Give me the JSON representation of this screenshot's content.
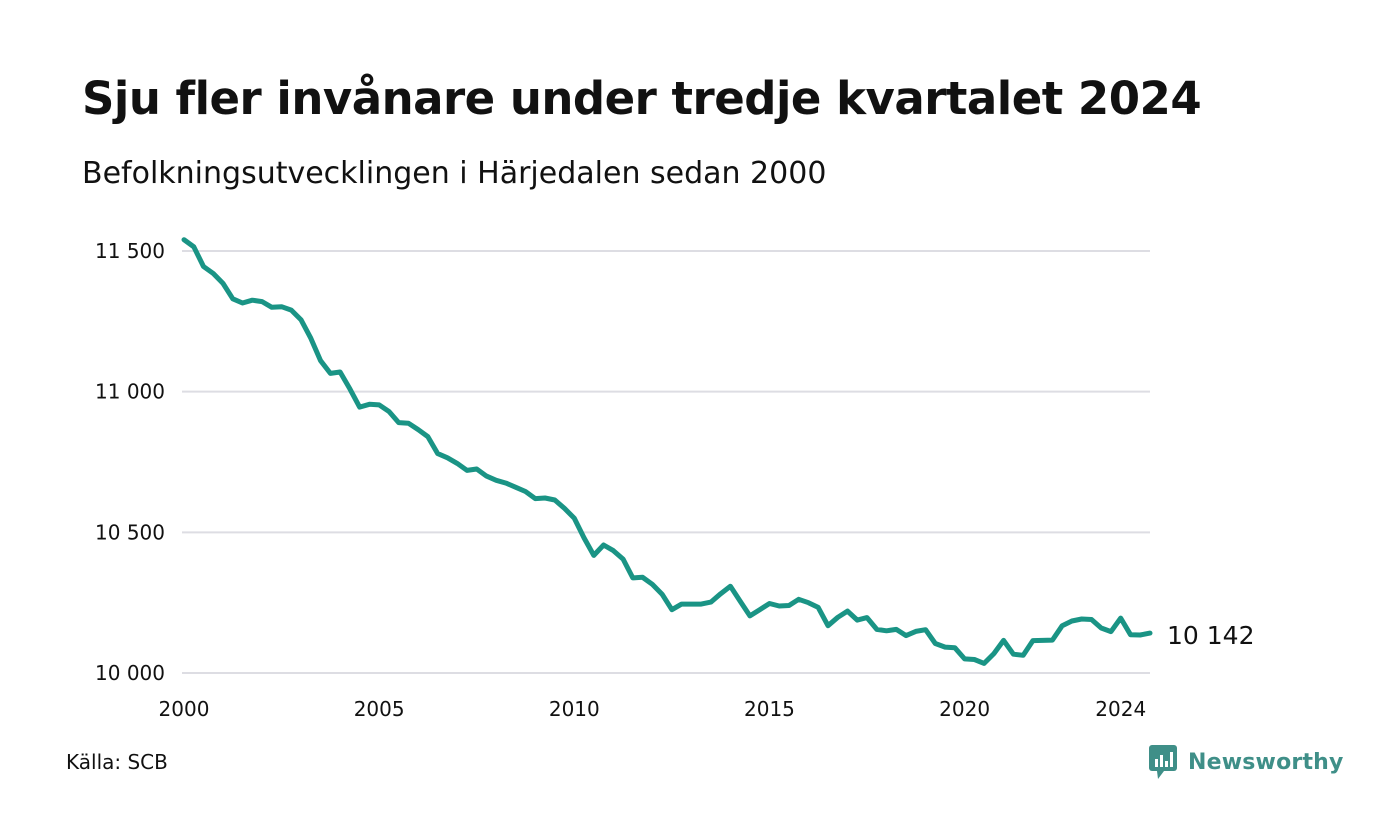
{
  "title": "Sju fler invånare under tredje kvartalet 2024",
  "subtitle": "Befolkningsutvecklingen i Härjedalen sedan 2000",
  "source": "Källa: SCB",
  "brand": "Newsworthy",
  "colors": {
    "line": "#1a9485",
    "grid": "#dddde3",
    "brand": "#3f8f88"
  },
  "chart_data": {
    "type": "line",
    "title": "Sju fler invånare under tredje kvartalet 2024",
    "subtitle": "Befolkningsutvecklingen i Härjedalen sedan 2000",
    "xlabel": "",
    "ylabel": "",
    "xlim": [
      2000,
      2024.75
    ],
    "ylim": [
      10000,
      11500
    ],
    "grid": true,
    "legend": "none",
    "x_ticks": [
      {
        "value": 2000,
        "label": "2000"
      },
      {
        "value": 2005,
        "label": "2005"
      },
      {
        "value": 2010,
        "label": "2010"
      },
      {
        "value": 2015,
        "label": "2015"
      },
      {
        "value": 2020,
        "label": "2020"
      },
      {
        "value": 2024,
        "label": "2024"
      }
    ],
    "y_ticks": [
      {
        "value": 10000,
        "label": "10 000"
      },
      {
        "value": 10500,
        "label": "10 500"
      },
      {
        "value": 11000,
        "label": "11 000"
      },
      {
        "value": 11500,
        "label": "11 500"
      }
    ],
    "end_label": "10 142",
    "series": [
      {
        "x": [
          2000.0,
          2000.25,
          2000.5,
          2000.75,
          2001.0,
          2001.25,
          2001.5,
          2001.75,
          2002.0,
          2002.25,
          2002.5,
          2002.75,
          2003.0,
          2003.25,
          2003.5,
          2003.75,
          2004.0,
          2004.25,
          2004.5,
          2004.75,
          2005.0,
          2005.25,
          2005.5,
          2005.75,
          2006.0,
          2006.25,
          2006.5,
          2006.75,
          2007.0,
          2007.25,
          2007.5,
          2007.75,
          2008.0,
          2008.25,
          2008.5,
          2008.75,
          2009.0,
          2009.25,
          2009.5,
          2009.75,
          2010.0,
          2010.25,
          2010.5,
          2010.75,
          2011.0,
          2011.25,
          2011.5,
          2011.75,
          2012.0,
          2012.25,
          2012.5,
          2012.75,
          2013.0,
          2013.25,
          2013.5,
          2013.75,
          2014.0,
          2014.25,
          2014.5,
          2014.75,
          2015.0,
          2015.25,
          2015.5,
          2015.75,
          2016.0,
          2016.25,
          2016.5,
          2016.75,
          2017.0,
          2017.25,
          2017.5,
          2017.75,
          2018.0,
          2018.25,
          2018.5,
          2018.75,
          2019.0,
          2019.25,
          2019.5,
          2019.75,
          2020.0,
          2020.25,
          2020.5,
          2020.75,
          2021.0,
          2021.25,
          2021.5,
          2021.75,
          2022.0,
          2022.25,
          2022.5,
          2022.75,
          2023.0,
          2023.25,
          2023.5,
          2023.75,
          2024.0,
          2024.25,
          2024.5,
          2024.75
        ],
        "values": [
          11540,
          11515,
          11445,
          11420,
          11385,
          11330,
          11315,
          11325,
          11320,
          11300,
          11302,
          11290,
          11255,
          11190,
          11110,
          11065,
          11070,
          11010,
          10945,
          10955,
          10953,
          10930,
          10890,
          10888,
          10865,
          10840,
          10780,
          10765,
          10745,
          10720,
          10725,
          10700,
          10685,
          10675,
          10660,
          10645,
          10620,
          10622,
          10615,
          10585,
          10550,
          10480,
          10418,
          10455,
          10435,
          10405,
          10338,
          10340,
          10315,
          10280,
          10225,
          10245,
          10245,
          10245,
          10252,
          10282,
          10308,
          10255,
          10203,
          10225,
          10247,
          10238,
          10240,
          10262,
          10250,
          10233,
          10168,
          10198,
          10220,
          10188,
          10197,
          10155,
          10150,
          10155,
          10133,
          10148,
          10154,
          10105,
          10092,
          10090,
          10050,
          10048,
          10034,
          10069,
          10116,
          10067,
          10063,
          10115,
          10116,
          10117,
          10168,
          10185,
          10192,
          10190,
          10160,
          10147,
          10195,
          10136,
          10135,
          10142
        ]
      }
    ]
  }
}
